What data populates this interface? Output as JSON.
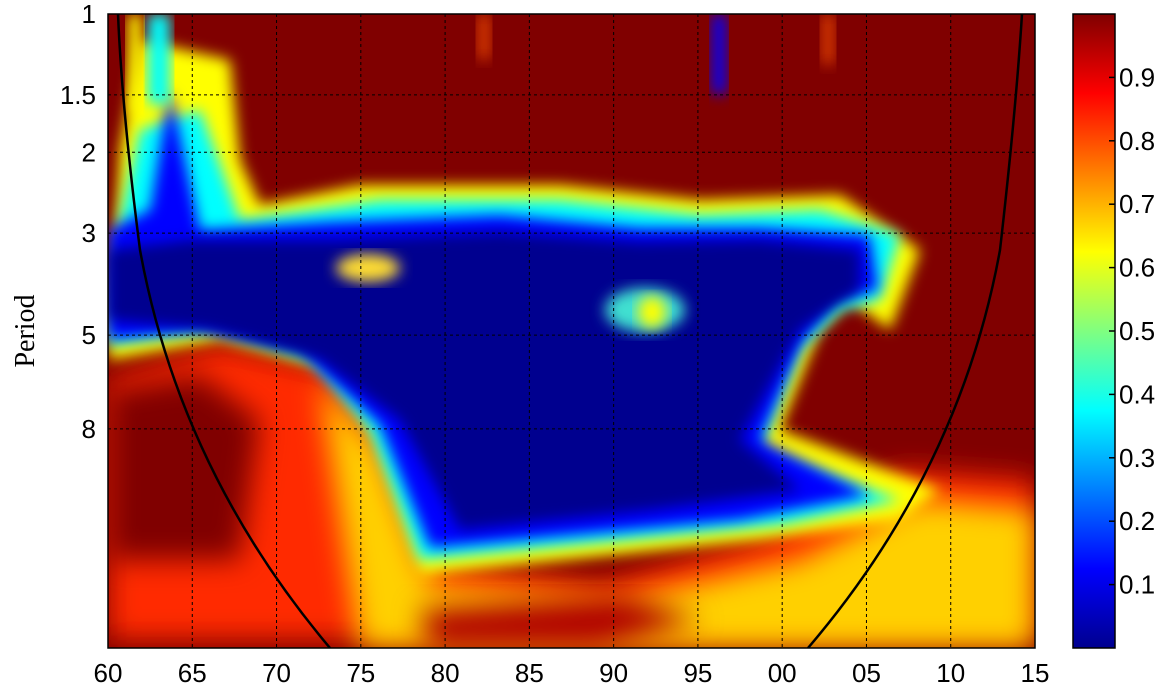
{
  "chart_data": {
    "type": "heatmap",
    "title": "",
    "xlabel": "",
    "ylabel": "Period",
    "x_tick_labels": [
      "60",
      "65",
      "70",
      "75",
      "80",
      "85",
      "90",
      "95",
      "00",
      "05",
      "10",
      "15"
    ],
    "x_range": [
      1960,
      2015
    ],
    "y_tick_labels": [
      "1",
      "1.5",
      "2",
      "3",
      "5",
      "8"
    ],
    "y_tick_values": [
      1,
      1.5,
      2,
      3,
      5,
      8
    ],
    "y_scale": "log",
    "y_range": [
      1,
      24
    ],
    "grid": true,
    "colorbar": {
      "tick_labels": [
        "0.1",
        "0.2",
        "0.3",
        "0.4",
        "0.5",
        "0.6",
        "0.7",
        "0.8",
        "0.9"
      ],
      "range": [
        0,
        1
      ],
      "colormap": "jet"
    },
    "cone_of_influence": true,
    "regions_description": {
      "high": "dark red background (value ~1) across most of the domain",
      "low": "dark blue region (value ~0) spanning roughly 1961-2007 at periods 2.5-12"
    }
  },
  "colors": {
    "high": "#800000",
    "low": "#00008f",
    "grid": "#000000",
    "coi_line": "#000000"
  }
}
